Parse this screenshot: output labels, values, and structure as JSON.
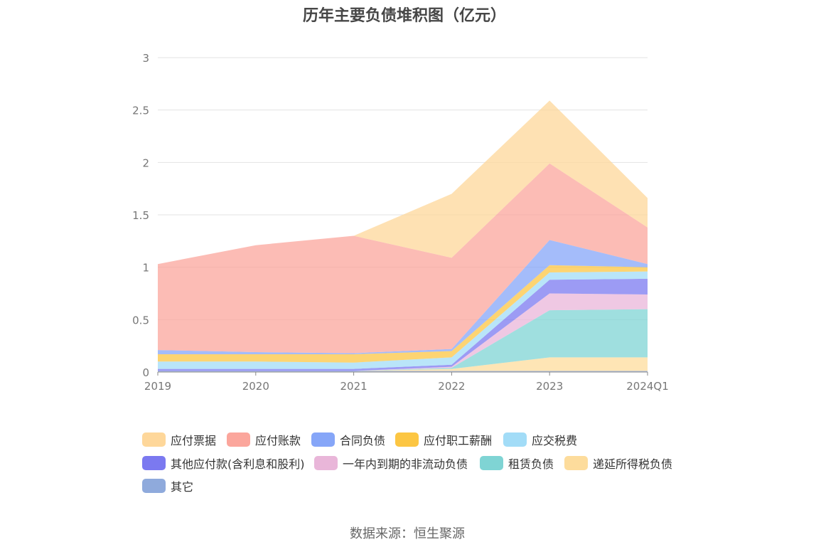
{
  "chart_data": {
    "type": "area",
    "stacked": true,
    "title": "历年主要负债堆积图（亿元）",
    "x": [
      "2019",
      "2020",
      "2021",
      "2022",
      "2023",
      "2024Q1"
    ],
    "ylim": [
      0,
      3
    ],
    "yticks": [
      "0",
      "0.5",
      "1",
      "1.5",
      "2",
      "2.5",
      "3"
    ],
    "grid": true,
    "legend_position": "bottom",
    "series": [
      {
        "name": "其它",
        "color": "#8faadc",
        "values": [
          0.01,
          0.01,
          0.01,
          0.01,
          0.01,
          0.01
        ]
      },
      {
        "name": "递延所得税负债",
        "color": "#fddc9c",
        "values": [
          0.0,
          0.0,
          0.0,
          0.02,
          0.13,
          0.13
        ]
      },
      {
        "name": "租赁负债",
        "color": "#7fd4d4",
        "values": [
          0.0,
          0.0,
          0.0,
          0.01,
          0.45,
          0.46
        ]
      },
      {
        "name": "一年内到期的非流动负债",
        "color": "#e9b6d9",
        "values": [
          0.0,
          0.0,
          0.0,
          0.01,
          0.16,
          0.14
        ]
      },
      {
        "name": "其他应付款(含利息和股利)",
        "color": "#7b79f0",
        "values": [
          0.02,
          0.02,
          0.02,
          0.02,
          0.13,
          0.15
        ]
      },
      {
        "name": "应交税费",
        "color": "#a2dcf7",
        "values": [
          0.07,
          0.07,
          0.06,
          0.07,
          0.07,
          0.07
        ]
      },
      {
        "name": "应付职工薪酬",
        "color": "#fcc643",
        "values": [
          0.07,
          0.07,
          0.08,
          0.06,
          0.07,
          0.04
        ]
      },
      {
        "name": "合同负债",
        "color": "#86a6f8",
        "values": [
          0.04,
          0.02,
          0.01,
          0.02,
          0.24,
          0.03
        ]
      },
      {
        "name": "应付账款",
        "color": "#fba69c",
        "values": [
          0.82,
          1.02,
          1.12,
          0.87,
          0.73,
          0.35
        ]
      },
      {
        "name": "应付票据",
        "color": "#fed79a",
        "values": [
          0.0,
          0.0,
          0.0,
          0.61,
          0.6,
          0.28
        ]
      }
    ]
  },
  "legend": [
    {
      "label": "应付票据",
      "color": "#fed79a"
    },
    {
      "label": "应付账款",
      "color": "#fba69c"
    },
    {
      "label": "合同负债",
      "color": "#86a6f8"
    },
    {
      "label": "应付职工薪酬",
      "color": "#fcc643"
    },
    {
      "label": "应交税费",
      "color": "#a2dcf7"
    },
    {
      "label": "其他应付款(含利息和股利)",
      "color": "#7b79f0"
    },
    {
      "label": "一年内到期的非流动负债",
      "color": "#e9b6d9"
    },
    {
      "label": "租赁负债",
      "color": "#7fd4d4"
    },
    {
      "label": "递延所得税负债",
      "color": "#fddc9c"
    },
    {
      "label": "其它",
      "color": "#8faadc"
    }
  ],
  "source": "数据来源：恒生聚源"
}
